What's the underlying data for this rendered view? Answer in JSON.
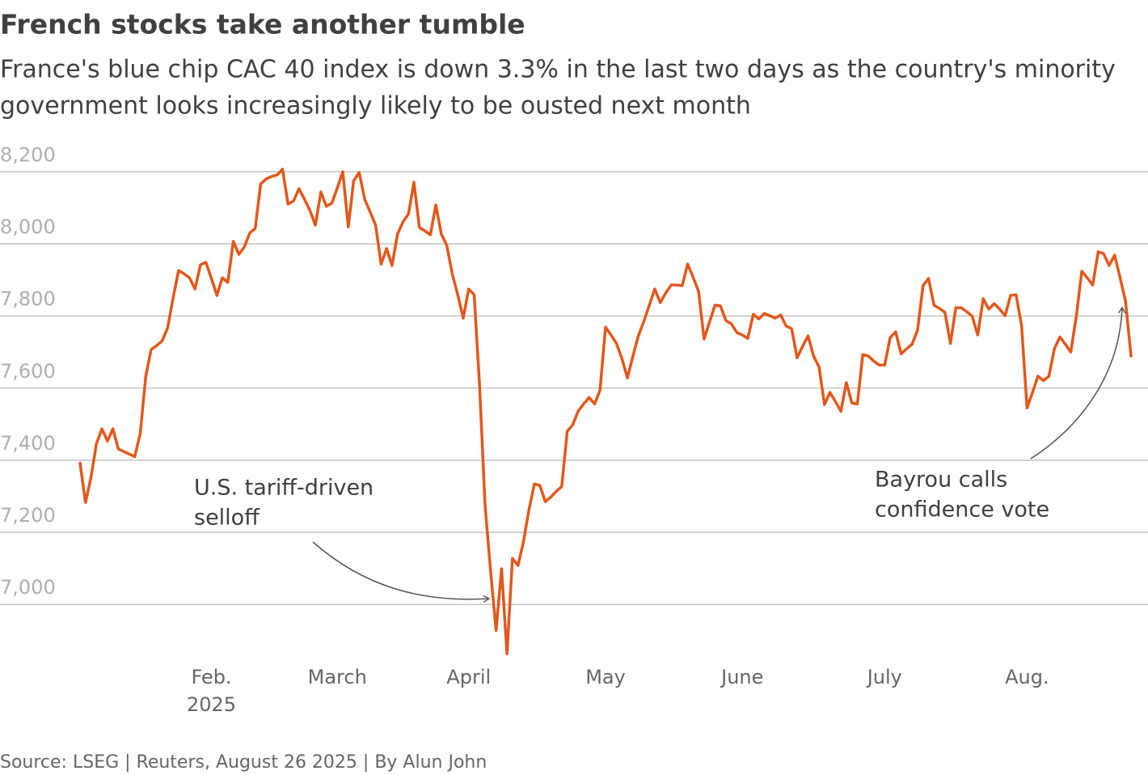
{
  "chart_data": {
    "type": "line",
    "title": "French stocks take another tumble",
    "subtitle": [
      "France's blue chip CAC 40 index is down 3.3% in the last two days as the country's minority",
      "government looks increasingly likely to be ousted next month"
    ],
    "source": "Source: LSEG | Reuters, August 26 2025 | By Alun John",
    "year": "2025",
    "color": "#e2581c",
    "grid": true,
    "ylim": [
      6800,
      8250
    ],
    "yticks": [
      {
        "value": 7000,
        "label": "7,000"
      },
      {
        "value": 7200,
        "label": "7,200"
      },
      {
        "value": 7400,
        "label": "7,400"
      },
      {
        "value": 7600,
        "label": "7,600"
      },
      {
        "value": 7800,
        "label": "7,800"
      },
      {
        "value": 8000,
        "label": "8,000"
      },
      {
        "value": 8200,
        "label": "8,200"
      }
    ],
    "annotations": [
      {
        "text": [
          "U.S. tariff-driven",
          "selloff"
        ]
      },
      {
        "text": [
          "Bayrou calls",
          "confidence vote"
        ]
      }
    ],
    "categories": [
      null,
      null,
      null,
      null,
      null,
      null,
      null,
      null,
      null,
      null,
      null,
      null,
      null,
      null,
      null,
      null,
      null,
      null,
      null,
      null,
      null,
      null,
      null,
      null,
      "Feb.",
      null,
      null,
      null,
      null,
      null,
      null,
      null,
      null,
      null,
      null,
      null,
      null,
      null,
      null,
      null,
      null,
      null,
      null,
      null,
      null,
      null,
      null,
      "March",
      null,
      null,
      null,
      null,
      null,
      null,
      null,
      null,
      null,
      null,
      null,
      null,
      null,
      null,
      null,
      null,
      null,
      null,
      null,
      null,
      null,
      null,
      null,
      "April",
      null,
      null,
      null,
      null,
      null,
      null,
      null,
      null,
      null,
      null,
      null,
      null,
      null,
      null,
      null,
      null,
      null,
      null,
      null,
      null,
      null,
      null,
      null,
      null,
      "May",
      null,
      null,
      null,
      null,
      null,
      null,
      null,
      null,
      null,
      null,
      null,
      null,
      null,
      null,
      null,
      null,
      null,
      null,
      null,
      null,
      null,
      null,
      null,
      null,
      "June",
      null,
      null,
      null,
      null,
      null,
      null,
      null,
      null,
      null,
      null,
      null,
      null,
      null,
      null,
      null,
      null,
      null,
      null,
      null,
      null,
      null,
      null,
      null,
      null,
      null,
      "July",
      null,
      null,
      null,
      null,
      null,
      null,
      null,
      null,
      null,
      null,
      null,
      null,
      null,
      null,
      null,
      null,
      null,
      null,
      null,
      null,
      null,
      null,
      null,
      null,
      null,
      "Aug.",
      null,
      null,
      null,
      null,
      null,
      null,
      null,
      null,
      null,
      null,
      null,
      null,
      null,
      null,
      null,
      null,
      null,
      null,
      null
    ],
    "values": [
      7392,
      7283,
      7352,
      7446,
      7487,
      7453,
      7487,
      7431,
      7424,
      7417,
      7410,
      7475,
      7633,
      7707,
      7718,
      7731,
      7767,
      7850,
      7926,
      7917,
      7906,
      7875,
      7942,
      7949,
      7904,
      7857,
      7906,
      7893,
      8007,
      7971,
      7991,
      8030,
      8043,
      8166,
      8180,
      8187,
      8191,
      8207,
      8110,
      8119,
      8153,
      8124,
      8092,
      8052,
      8144,
      8104,
      8113,
      8155,
      8200,
      8047,
      8175,
      8198,
      8124,
      8088,
      8052,
      7944,
      7987,
      7940,
      8027,
      8061,
      8083,
      8171,
      8045,
      8036,
      8025,
      8108,
      8027,
      7996,
      7917,
      7859,
      7794,
      7875,
      7859,
      7603,
      7274,
      7094,
      6928,
      7099,
      6863,
      7128,
      7108,
      7173,
      7262,
      7334,
      7330,
      7285,
      7298,
      7314,
      7327,
      7480,
      7498,
      7536,
      7556,
      7574,
      7556,
      7594,
      7769,
      7747,
      7724,
      7682,
      7628,
      7689,
      7745,
      7785,
      7830,
      7875,
      7837,
      7864,
      7886,
      7886,
      7884,
      7944,
      7908,
      7868,
      7736,
      7783,
      7830,
      7828,
      7787,
      7778,
      7754,
      7747,
      7738,
      7805,
      7792,
      7807,
      7801,
      7794,
      7803,
      7772,
      7765,
      7684,
      7716,
      7745,
      7689,
      7659,
      7554,
      7588,
      7563,
      7536,
      7615,
      7559,
      7556,
      7693,
      7689,
      7675,
      7664,
      7664,
      7740,
      7756,
      7695,
      7709,
      7722,
      7760,
      7884,
      7904,
      7830,
      7821,
      7810,
      7724,
      7823,
      7823,
      7812,
      7799,
      7747,
      7848,
      7819,
      7834,
      7819,
      7801,
      7857,
      7859,
      7774,
      7545,
      7588,
      7633,
      7621,
      7633,
      7709,
      7742,
      7722,
      7700,
      7799,
      7924,
      7906,
      7886,
      7978,
      7973,
      7940,
      7969,
      7906,
      7841,
      7689
    ]
  }
}
